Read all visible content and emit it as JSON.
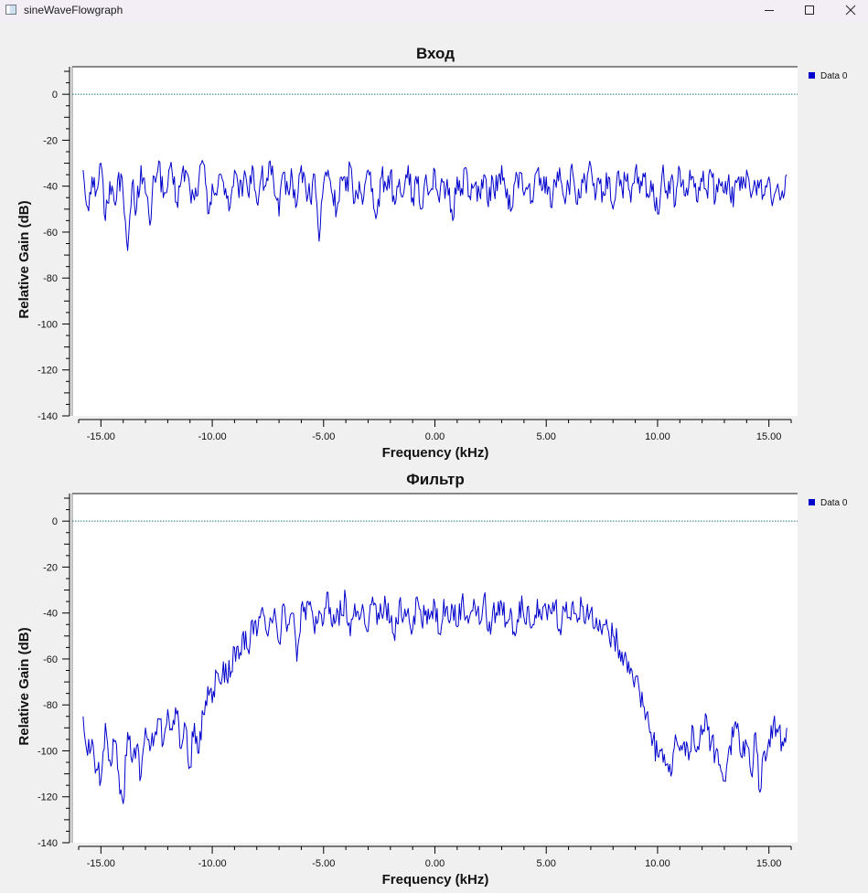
{
  "window": {
    "title": "sineWaveFlowgraph"
  },
  "chart_data": [
    {
      "type": "line",
      "title": "Вход",
      "xlabel": "Frequency (kHz)",
      "ylabel": "Relative Gain (dB)",
      "xlim": [
        -16,
        16
      ],
      "ylim": [
        -140,
        12
      ],
      "xticks": [
        "-15.00",
        "-10.00",
        "-5.00",
        "0.00",
        "5.00",
        "10.00",
        "15.00"
      ],
      "yticks": [
        "0",
        "-20",
        "-40",
        "-60",
        "-80",
        "-100",
        "-120",
        "-140"
      ],
      "reference_line": 0,
      "legend_position": "right",
      "grid": false,
      "series": [
        {
          "name": "Data 0",
          "color": "#0000cc",
          "x": [
            -15.8,
            -15.6,
            -15.4,
            -15.2,
            -15.0,
            -14.8,
            -14.6,
            -14.4,
            -14.2,
            -14.0,
            -13.8,
            -13.6,
            -13.4,
            -13.2,
            -13.0,
            -12.8,
            -12.6,
            -12.4,
            -12.2,
            -12.0,
            -11.8,
            -11.6,
            -11.4,
            -11.2,
            -11.0,
            -10.8,
            -10.6,
            -10.4,
            -10.2,
            -10.0,
            -9.8,
            -9.6,
            -9.4,
            -9.2,
            -9.0,
            -8.8,
            -8.6,
            -8.4,
            -8.2,
            -8.0,
            -7.8,
            -7.6,
            -7.4,
            -7.2,
            -7.0,
            -6.8,
            -6.6,
            -6.4,
            -6.2,
            -6.0,
            -5.8,
            -5.6,
            -5.4,
            -5.2,
            -5.0,
            -4.8,
            -4.6,
            -4.4,
            -4.2,
            -4.0,
            -3.8,
            -3.6,
            -3.4,
            -3.2,
            -3.0,
            -2.8,
            -2.6,
            -2.4,
            -2.2,
            -2.0,
            -1.8,
            -1.6,
            -1.4,
            -1.2,
            -1.0,
            -0.8,
            -0.6,
            -0.4,
            -0.2,
            0.0,
            0.2,
            0.4,
            0.6,
            0.8,
            1.0,
            1.2,
            1.4,
            1.6,
            1.8,
            2.0,
            2.2,
            2.4,
            2.6,
            2.8,
            3.0,
            3.2,
            3.4,
            3.6,
            3.8,
            4.0,
            4.2,
            4.4,
            4.6,
            4.8,
            5.0,
            5.2,
            5.4,
            5.6,
            5.8,
            6.0,
            6.2,
            6.4,
            6.6,
            6.8,
            7.0,
            7.2,
            7.4,
            7.6,
            7.8,
            8.0,
            8.2,
            8.4,
            8.6,
            8.8,
            9.0,
            9.2,
            9.4,
            9.6,
            9.8,
            10.0,
            10.2,
            10.4,
            10.6,
            10.8,
            11.0,
            11.2,
            11.4,
            11.6,
            11.8,
            12.0,
            12.2,
            12.4,
            12.6,
            12.8,
            13.0,
            13.2,
            13.4,
            13.6,
            13.8,
            14.0,
            14.2,
            14.4,
            14.6,
            14.8,
            15.0,
            15.2,
            15.4,
            15.6,
            15.8
          ],
          "y": [
            -33,
            -49,
            -36,
            -42,
            -30,
            -55,
            -38,
            -47,
            -34,
            -44,
            -68,
            -39,
            -50,
            -31,
            -43,
            -57,
            -36,
            -29,
            -45,
            -40,
            -34,
            -47,
            -38,
            -33,
            -42,
            -46,
            -37,
            -30,
            -52,
            -39,
            -44,
            -35,
            -41,
            -49,
            -33,
            -45,
            -38,
            -43,
            -31,
            -47,
            -36,
            -40,
            -29,
            -44,
            -53,
            -34,
            -42,
            -37,
            -48,
            -31,
            -41,
            -46,
            -35,
            -64,
            -39,
            -33,
            -44,
            -50,
            -36,
            -42,
            -31,
            -47,
            -38,
            -45,
            -33,
            -41,
            -52,
            -36,
            -40,
            -34,
            -48,
            -37,
            -43,
            -31,
            -45,
            -39,
            -50,
            -35,
            -42,
            -33,
            -47,
            -38,
            -44,
            -55,
            -36,
            -41,
            -32,
            -46,
            -39,
            -43,
            -35,
            -49,
            -37,
            -42,
            -31,
            -45,
            -51,
            -38,
            -34,
            -44,
            -40,
            -47,
            -33,
            -42,
            -36,
            -49,
            -38,
            -32,
            -45,
            -40,
            -35,
            -48,
            -37,
            -43,
            -31,
            -46,
            -39,
            -44,
            -36,
            -50,
            -34,
            -41,
            -38,
            -47,
            -33,
            -43,
            -36,
            -45,
            -39,
            -52,
            -35,
            -42,
            -37,
            -48,
            -33,
            -44,
            -40,
            -36,
            -47,
            -38,
            -42,
            -34,
            -46,
            -39,
            -43,
            -35,
            -49,
            -37,
            -41,
            -33,
            -45,
            -40,
            -38,
            -44,
            -36,
            -46,
            -39,
            -42,
            -35
          ],
          "noise": 6
        }
      ]
    },
    {
      "type": "line",
      "title": "Фильтр",
      "xlabel": "Frequency (kHz)",
      "ylabel": "Relative Gain (dB)",
      "xlim": [
        -16,
        16
      ],
      "ylim": [
        -140,
        12
      ],
      "xticks": [
        "-15.00",
        "-10.00",
        "-5.00",
        "0.00",
        "5.00",
        "10.00",
        "15.00"
      ],
      "yticks": [
        "0",
        "-20",
        "-40",
        "-60",
        "-80",
        "-100",
        "-120",
        "-140"
      ],
      "reference_line": 0,
      "legend_position": "right",
      "grid": false,
      "series": [
        {
          "name": "Data 0",
          "color": "#0000cc",
          "x": [
            -15.8,
            -15.6,
            -15.4,
            -15.2,
            -15.0,
            -14.8,
            -14.6,
            -14.4,
            -14.2,
            -14.0,
            -13.8,
            -13.6,
            -13.4,
            -13.2,
            -13.0,
            -12.8,
            -12.6,
            -12.4,
            -12.2,
            -12.0,
            -11.8,
            -11.6,
            -11.4,
            -11.2,
            -11.0,
            -10.8,
            -10.6,
            -10.4,
            -10.2,
            -10.0,
            -9.8,
            -9.6,
            -9.4,
            -9.2,
            -9.0,
            -8.8,
            -8.6,
            -8.4,
            -8.2,
            -8.0,
            -7.8,
            -7.6,
            -7.4,
            -7.2,
            -7.0,
            -6.8,
            -6.6,
            -6.4,
            -6.2,
            -6.0,
            -5.8,
            -5.6,
            -5.4,
            -5.2,
            -5.0,
            -4.8,
            -4.6,
            -4.4,
            -4.2,
            -4.0,
            -3.8,
            -3.6,
            -3.4,
            -3.2,
            -3.0,
            -2.8,
            -2.6,
            -2.4,
            -2.2,
            -2.0,
            -1.8,
            -1.6,
            -1.4,
            -1.2,
            -1.0,
            -0.8,
            -0.6,
            -0.4,
            -0.2,
            0.0,
            0.2,
            0.4,
            0.6,
            0.8,
            1.0,
            1.2,
            1.4,
            1.6,
            1.8,
            2.0,
            2.2,
            2.4,
            2.6,
            2.8,
            3.0,
            3.2,
            3.4,
            3.6,
            3.8,
            4.0,
            4.2,
            4.4,
            4.6,
            4.8,
            5.0,
            5.2,
            5.4,
            5.6,
            5.8,
            6.0,
            6.2,
            6.4,
            6.6,
            6.8,
            7.0,
            7.2,
            7.4,
            7.6,
            7.8,
            8.0,
            8.2,
            8.4,
            8.6,
            8.8,
            9.0,
            9.2,
            9.4,
            9.6,
            9.8,
            10.0,
            10.2,
            10.4,
            10.6,
            10.8,
            11.0,
            11.2,
            11.4,
            11.6,
            11.8,
            12.0,
            12.2,
            12.4,
            12.6,
            12.8,
            13.0,
            13.2,
            13.4,
            13.6,
            13.8,
            14.0,
            14.2,
            14.4,
            14.6,
            14.8,
            15.0,
            15.2,
            15.4,
            15.6,
            15.8
          ],
          "y": [
            -85,
            -102,
            -95,
            -108,
            -113,
            -88,
            -104,
            -96,
            -110,
            -123,
            -92,
            -105,
            -98,
            -111,
            -90,
            -100,
            -94,
            -86,
            -97,
            -82,
            -91,
            -84,
            -99,
            -89,
            -107,
            -88,
            -101,
            -84,
            -72,
            -79,
            -66,
            -71,
            -62,
            -68,
            -55,
            -60,
            -48,
            -56,
            -43,
            -50,
            -39,
            -47,
            -42,
            -38,
            -53,
            -36,
            -45,
            -40,
            -61,
            -37,
            -43,
            -35,
            -49,
            -39,
            -44,
            -31,
            -46,
            -38,
            -41,
            -34,
            -50,
            -36,
            -43,
            -39,
            -48,
            -33,
            -45,
            -40,
            -37,
            -44,
            -52,
            -35,
            -42,
            -38,
            -47,
            -33,
            -44,
            -39,
            -41,
            -36,
            -49,
            -34,
            -43,
            -38,
            -46,
            -35,
            -42,
            -40,
            -37,
            -45,
            -33,
            -48,
            -39,
            -41,
            -36,
            -44,
            -38,
            -50,
            -35,
            -42,
            -37,
            -45,
            -34,
            -43,
            -39,
            -40,
            -36,
            -47,
            -38,
            -42,
            -35,
            -44,
            -37,
            -41,
            -39,
            -46,
            -43,
            -45,
            -48,
            -50,
            -53,
            -57,
            -60,
            -64,
            -68,
            -75,
            -81,
            -88,
            -95,
            -102,
            -99,
            -106,
            -111,
            -93,
            -100,
            -96,
            -104,
            -90,
            -98,
            -93,
            -85,
            -97,
            -101,
            -106,
            -113,
            -99,
            -94,
            -88,
            -103,
            -97,
            -110,
            -92,
            -118,
            -100,
            -95,
            -88,
            -92,
            -96,
            -90
          ],
          "noise": 6
        }
      ]
    }
  ]
}
